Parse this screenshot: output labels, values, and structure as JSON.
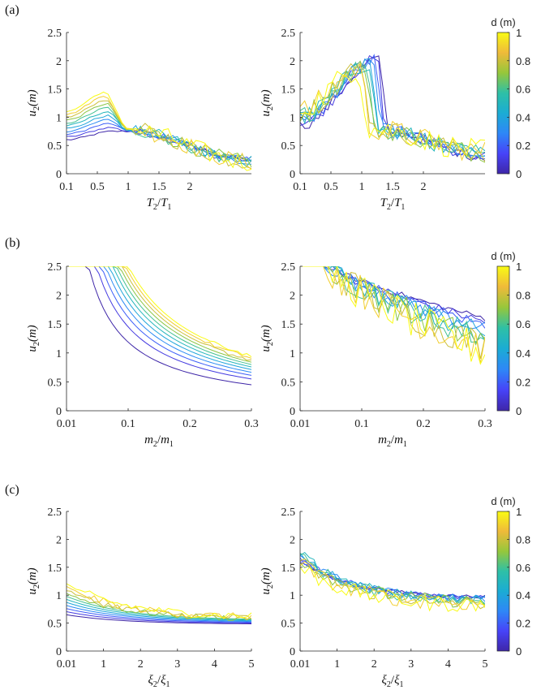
{
  "figure": {
    "panels": [
      {
        "label": "(a)"
      },
      {
        "label": "(b)"
      },
      {
        "label": "(c)"
      }
    ],
    "colorbar": {
      "title": "d (m)",
      "ticks": [
        "0",
        "0.2",
        "0.4",
        "0.6",
        "0.8",
        "1"
      ],
      "range": [
        0,
        1
      ]
    },
    "colormap": [
      "#3e26a8",
      "#4743f8",
      "#2e87f7",
      "#1bacd4",
      "#2ec0a6",
      "#96c73b",
      "#efba3a",
      "#f9fb14"
    ]
  },
  "chart_data": [
    {
      "type": "line",
      "row": "a",
      "col": "left",
      "kind": "peak",
      "shape": {
        "xpeak": 0.7,
        "drop": 0.95
      },
      "title": "",
      "xlabel": "T2/T1",
      "ylabel": "u2(m)",
      "xlim": [
        0,
        3
      ],
      "ylim": [
        0,
        2.5
      ],
      "xticks": [
        {
          "v": 0,
          "t": "0.1"
        },
        {
          "v": 0.5,
          "t": "0.5"
        },
        {
          "v": 1,
          "t": "1"
        },
        {
          "v": 1.5,
          "t": "1.5"
        },
        {
          "v": 2,
          "t": "2"
        }
      ],
      "yticks": [
        "0",
        "0.5",
        "1",
        "1.5",
        "2",
        "2.5"
      ],
      "series_color_by": "d (m)",
      "n_series": 11,
      "series_summary": [
        {
          "d": 0,
          "start": 0.6,
          "peak": 0.75,
          "end": 0.25
        },
        {
          "d": 0.5,
          "start": 0.85,
          "peak": 1.05,
          "end": 0.25
        },
        {
          "d": 1,
          "start": 1.1,
          "peak": 1.45,
          "end": 0.2
        }
      ]
    },
    {
      "type": "line",
      "row": "a",
      "col": "right",
      "kind": "peak",
      "shape": {
        "xpeak": 1.05,
        "drop": 1.25
      },
      "title": "",
      "xlabel": "T2/T1",
      "ylabel": "u2(m)",
      "xlim": [
        0,
        3
      ],
      "ylim": [
        0,
        2.5
      ],
      "xticks": [
        {
          "v": 0,
          "t": "0.1"
        },
        {
          "v": 0.5,
          "t": "0.5"
        },
        {
          "v": 1,
          "t": "1"
        },
        {
          "v": 1.5,
          "t": "1.5"
        },
        {
          "v": 2,
          "t": "2"
        }
      ],
      "yticks": [
        "0",
        "0.5",
        "1",
        "1.5",
        "2",
        "2.5"
      ],
      "series_color_by": "d (m)",
      "n_series": 11,
      "series_summary": [
        {
          "d": 0,
          "start": 0.85,
          "peak": 2.05,
          "end": 0.3
        },
        {
          "d": 0.5,
          "start": 1.0,
          "peak": 1.95,
          "end": 0.3
        },
        {
          "d": 1,
          "start": 1.15,
          "peak": 1.85,
          "end": 0.4
        }
      ]
    },
    {
      "type": "line",
      "row": "b",
      "col": "left",
      "kind": "decay",
      "title": "",
      "xlabel": "m2/m1",
      "ylabel": "u2(m)",
      "xlim": [
        0,
        3
      ],
      "ylim": [
        0,
        2.5
      ],
      "xticks": [
        {
          "v": 0,
          "t": "0.01"
        },
        {
          "v": 1,
          "t": "0.1"
        },
        {
          "v": 2,
          "t": "0.2"
        },
        {
          "v": 3,
          "t": "0.3"
        }
      ],
      "yticks": [
        "0",
        "0.5",
        "1",
        "1.5",
        "2",
        "2.5"
      ],
      "series_color_by": "d (m)",
      "n_series": 11,
      "series_summary": [
        {
          "d": 0,
          "end": 0.45
        },
        {
          "d": 0.5,
          "end": 0.75
        },
        {
          "d": 1,
          "end": 0.95
        }
      ]
    },
    {
      "type": "line",
      "row": "b",
      "col": "right",
      "kind": "noisy-decay",
      "title": "",
      "xlabel": "m2/m1",
      "ylabel": "u2(m)",
      "xlim": [
        0,
        3
      ],
      "ylim": [
        0,
        2.5
      ],
      "xticks": [
        {
          "v": 0,
          "t": "0.01"
        },
        {
          "v": 1,
          "t": "0.1"
        },
        {
          "v": 2,
          "t": "0.2"
        },
        {
          "v": 3,
          "t": "0.3"
        }
      ],
      "yticks": [
        "0",
        "0.5",
        "1",
        "1.5",
        "2",
        "2.5"
      ],
      "series_color_by": "d (m)",
      "n_series": 11,
      "series_summary": [
        {
          "d": 0,
          "start": 2.5,
          "end": 1.6
        },
        {
          "d": 0.5,
          "start": 2.5,
          "end": 1.3
        },
        {
          "d": 1,
          "start": 2.5,
          "end": 1.0
        }
      ]
    },
    {
      "type": "line",
      "row": "c",
      "col": "left",
      "kind": "gentle-decay",
      "title": "",
      "xlabel": "ξ2/ξ1",
      "ylabel": "u2(m)",
      "xlim": [
        0,
        5
      ],
      "ylim": [
        0,
        2.5
      ],
      "xticks": [
        {
          "v": 0,
          "t": "0.01"
        },
        {
          "v": 1,
          "t": "1"
        },
        {
          "v": 2,
          "t": "2"
        },
        {
          "v": 3,
          "t": "3"
        },
        {
          "v": 4,
          "t": "4"
        },
        {
          "v": 5,
          "t": "5"
        }
      ],
      "yticks": [
        "0",
        "0.5",
        "1",
        "1.5",
        "2",
        "2.5"
      ],
      "series_color_by": "d (m)",
      "n_series": 11,
      "series_summary": [
        {
          "d": 0,
          "start": 0.65,
          "end": 0.48
        },
        {
          "d": 0.5,
          "start": 0.9,
          "end": 0.52
        },
        {
          "d": 1,
          "start": 1.2,
          "end": 0.6
        }
      ]
    },
    {
      "type": "line",
      "row": "c",
      "col": "right",
      "kind": "converge-decay",
      "title": "",
      "xlabel": "ξ2/ξ1",
      "ylabel": "u2(m)",
      "xlim": [
        0,
        5
      ],
      "ylim": [
        0,
        2.5
      ],
      "xticks": [
        {
          "v": 0,
          "t": "0.01"
        },
        {
          "v": 1,
          "t": "1"
        },
        {
          "v": 2,
          "t": "2"
        },
        {
          "v": 3,
          "t": "3"
        },
        {
          "v": 4,
          "t": "4"
        },
        {
          "v": 5,
          "t": "5"
        }
      ],
      "yticks": [
        "0",
        "0.5",
        "1",
        "1.5",
        "2",
        "2.5"
      ],
      "series_color_by": "d (m)",
      "n_series": 11,
      "series_summary": [
        {
          "d": 0,
          "start": 1.6,
          "end": 0.95
        },
        {
          "d": 0.5,
          "start": 1.75,
          "end": 0.85
        },
        {
          "d": 1,
          "start": 1.5,
          "end": 0.8
        }
      ]
    }
  ]
}
